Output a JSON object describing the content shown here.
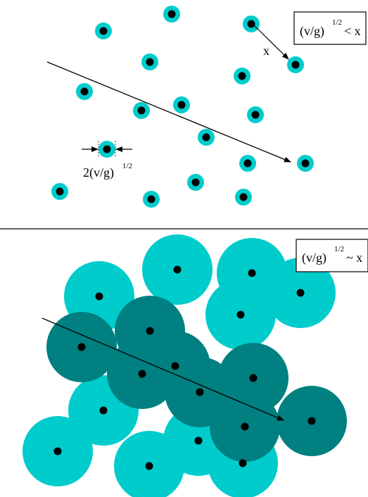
{
  "colors": {
    "cyan": "#00cccc",
    "teal": "#008080",
    "dot": "#000000",
    "line": "#000000",
    "background": "#ffffff"
  },
  "top_panel": {
    "condition_box": {
      "base": "(v/g)",
      "exponent": "1/2",
      "relation": "< x"
    },
    "distance_label": "x",
    "radius_label": {
      "prefix": "2(v/g)",
      "exponent": "1/2"
    }
  },
  "bottom_panel": {
    "condition_box": {
      "base": "(v/g)",
      "exponent": "1/2",
      "relation": "~ x"
    }
  }
}
